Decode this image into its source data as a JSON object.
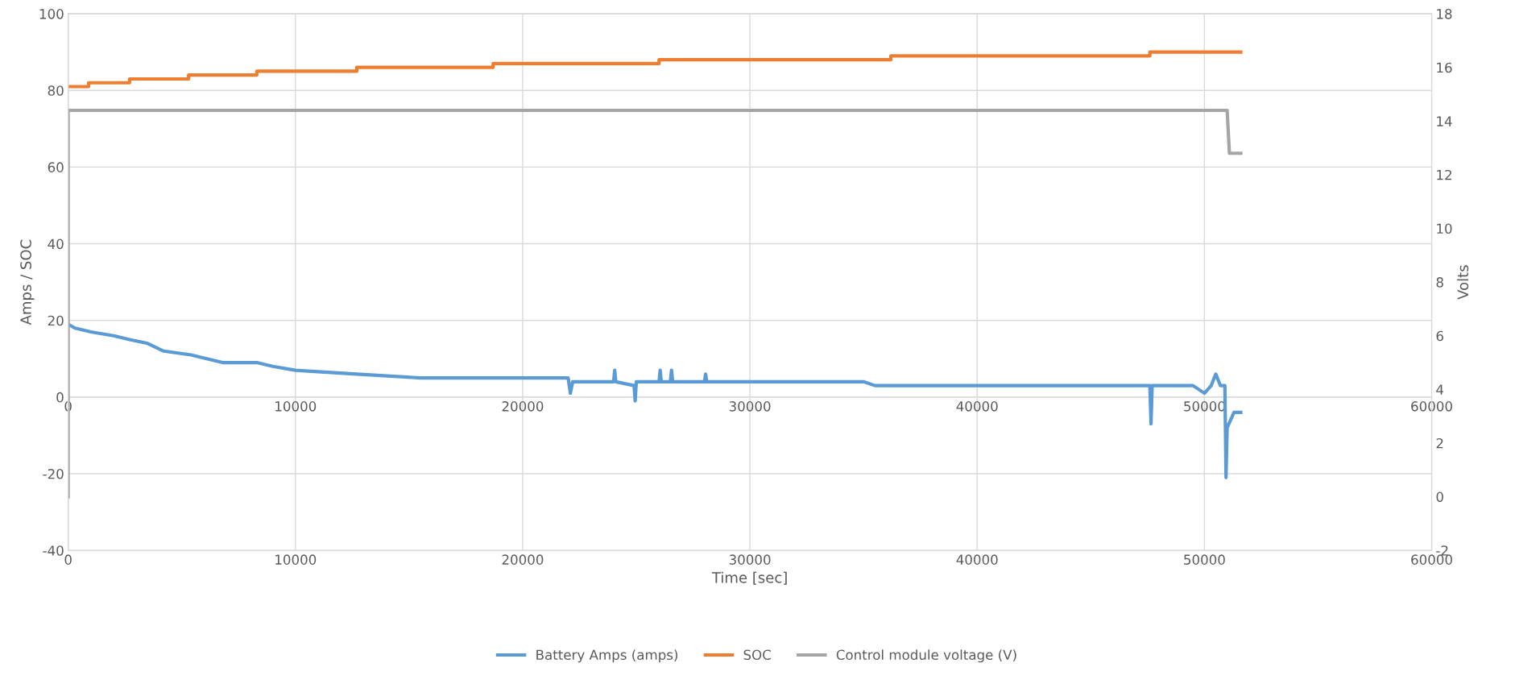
{
  "chart_data": {
    "type": "line",
    "xlabel": "Time [sec]",
    "ylabel": "Amps / SOC",
    "y2label": "Volts",
    "xlim": [
      0,
      60000
    ],
    "xticks": [
      0,
      10000,
      20000,
      30000,
      40000,
      50000,
      60000
    ],
    "x2lim": [
      0,
      60000
    ],
    "x2ticks": [
      0,
      10000,
      20000,
      30000,
      40000,
      50000,
      60000
    ],
    "ylim": [
      -40,
      100
    ],
    "yticks": [
      -40,
      -20,
      0,
      20,
      40,
      60,
      80,
      100
    ],
    "y2lim": [
      -2,
      18
    ],
    "y2ticks": [
      -2,
      0,
      2,
      4,
      6,
      8,
      10,
      12,
      14,
      16,
      18
    ],
    "grid": true,
    "legend": "bottom",
    "marker": "none",
    "line_style": "solid",
    "series": [
      {
        "name": "Battery Amps (amps)",
        "color": "#5b9bd5",
        "x": [
          0,
          300,
          1000,
          2000,
          2700,
          3500,
          4200,
          5400,
          6800,
          8300,
          9000,
          10000,
          12700,
          15500,
          18000,
          22000,
          22100,
          22200,
          24000,
          24050,
          24100,
          24900,
          24950,
          25000,
          26000,
          26050,
          26100,
          26500,
          26550,
          26600,
          28000,
          28050,
          28100,
          35000,
          35500,
          47600,
          47650,
          47700,
          49500,
          50000,
          50300,
          50500,
          50700,
          50900,
          50950,
          51000,
          51300,
          51600
        ],
        "values": [
          19,
          18,
          17,
          16,
          15,
          14,
          12,
          11,
          9,
          9,
          8,
          7,
          6,
          5,
          5,
          5,
          1,
          4,
          4,
          7,
          4,
          3,
          -1,
          4,
          4,
          7,
          4,
          4,
          7,
          4,
          4,
          6,
          4,
          4,
          3,
          3,
          -7,
          3,
          3,
          1,
          3,
          6,
          3,
          3,
          -21,
          -8,
          -4,
          -4
        ]
      },
      {
        "name": "SOC",
        "color": "#ed7d31",
        "x": [
          0,
          900,
          900,
          2700,
          2700,
          5300,
          5300,
          8300,
          8300,
          12700,
          12700,
          18700,
          18700,
          26000,
          26000,
          36200,
          36200,
          47600,
          47600,
          51600
        ],
        "values": [
          81,
          81,
          82,
          82,
          83,
          83,
          84,
          84,
          85,
          85,
          86,
          86,
          87,
          87,
          88,
          88,
          89,
          89,
          90,
          90
        ]
      },
      {
        "name": "Control module voltage (V)",
        "color": "#a5a5a5",
        "axis": "y2",
        "x": [
          0,
          0,
          10000,
          20000,
          30000,
          40000,
          51000,
          51100,
          51600
        ],
        "values": [
          0,
          14.4,
          14.4,
          14.4,
          14.4,
          14.4,
          14.4,
          12.8,
          12.8
        ]
      }
    ]
  }
}
